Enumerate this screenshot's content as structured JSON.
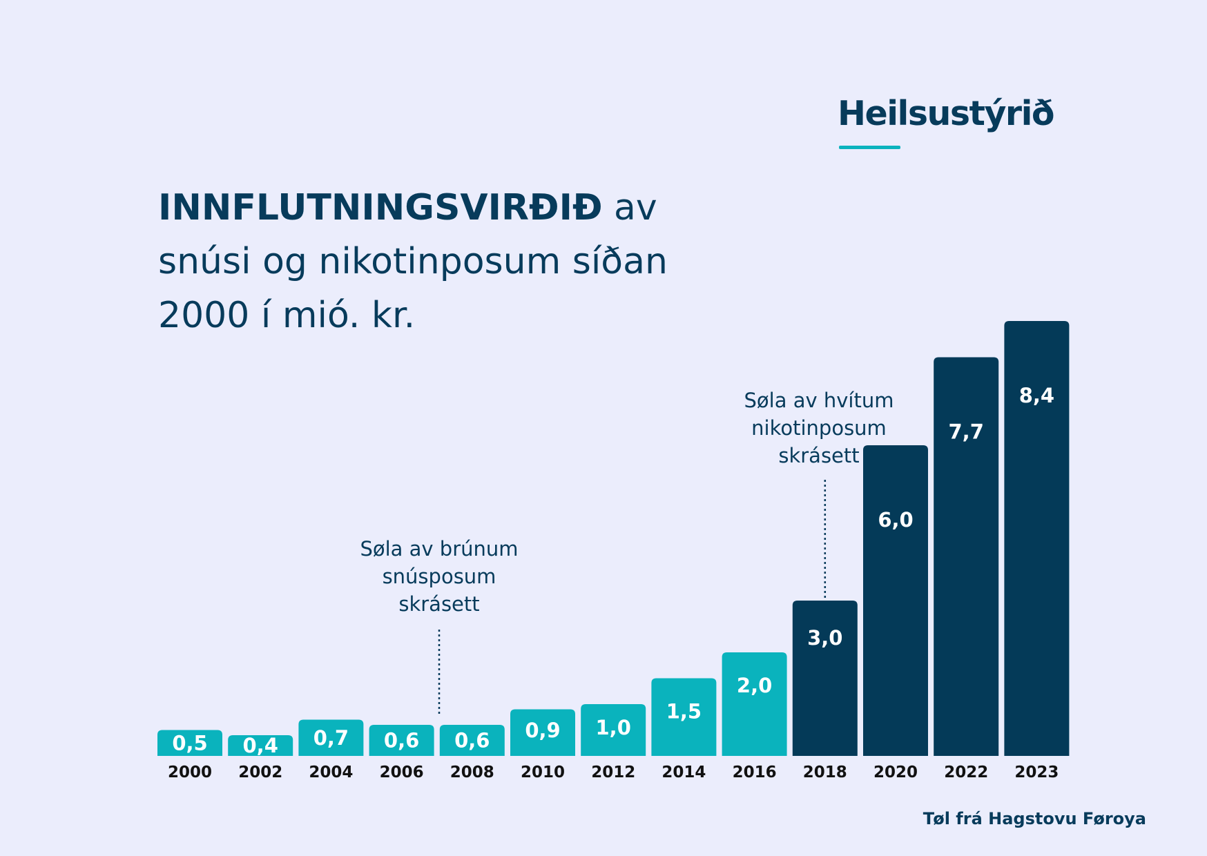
{
  "logo": {
    "text": "Heilsustýrið"
  },
  "title": {
    "bold": "INNFLUTNINGSVIRÐIÐ",
    "rest": " av snúsi og nikotinposum síðan 2000 í mió. kr."
  },
  "source": "Tøl frá Hagstovu Føroya",
  "colors": {
    "background": "#ebedfc",
    "teal": "#0ab3bd",
    "navy": "#043a58",
    "text": "#073b5b"
  },
  "chart_data": {
    "type": "bar",
    "categories": [
      "2000",
      "2002",
      "2004",
      "2006",
      "2008",
      "2010",
      "2012",
      "2014",
      "2016",
      "2018",
      "2020",
      "2022",
      "2023"
    ],
    "values": [
      0.5,
      0.4,
      0.7,
      0.6,
      0.6,
      0.9,
      1.0,
      1.5,
      2.0,
      3.0,
      6.0,
      7.7,
      8.4
    ],
    "value_labels": [
      "0,5",
      "0,4",
      "0,7",
      "0,6",
      "0,6",
      "0,9",
      "1,0",
      "1,5",
      "2,0",
      "3,0",
      "6,0",
      "7,7",
      "8,4"
    ],
    "bar_colors": [
      "teal",
      "teal",
      "teal",
      "teal",
      "teal",
      "teal",
      "teal",
      "teal",
      "teal",
      "navy",
      "navy",
      "navy",
      "navy"
    ],
    "annotations": [
      {
        "lines": [
          "Søla av brúnum",
          "snúsposum",
          "skrásett"
        ],
        "near_category": "2008"
      },
      {
        "lines": [
          "Søla av hvítum",
          "nikotinposum",
          "skrásett"
        ],
        "near_category": "2018"
      }
    ]
  }
}
